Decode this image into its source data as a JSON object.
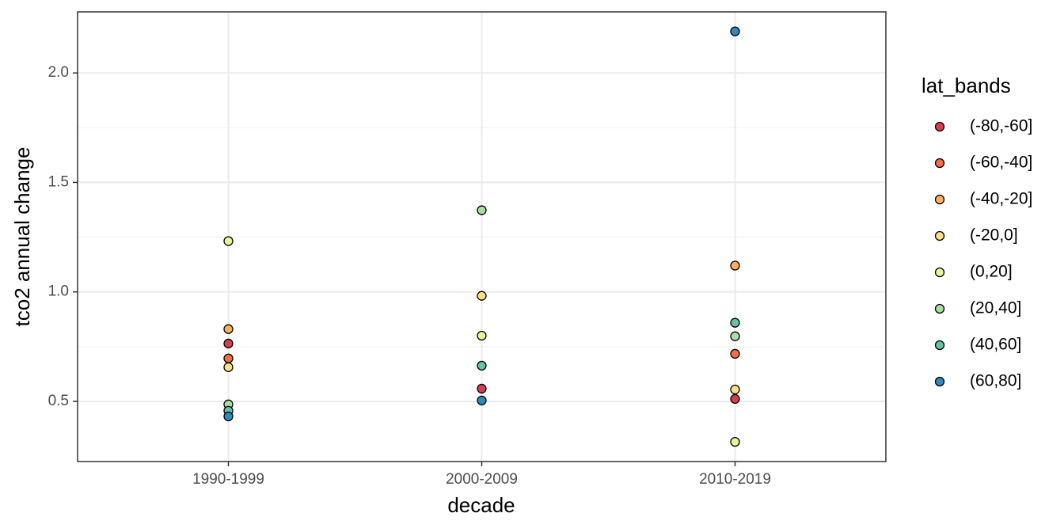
{
  "chart_data": {
    "type": "scatter",
    "x_label": "decade",
    "y_label": "tco2 annual change",
    "categories": [
      "1990-1999",
      "2000-2009",
      "2010-2019"
    ],
    "legend_title": "lat_bands",
    "legend_position": "right",
    "series": [
      {
        "name": "(-80,-60]",
        "color": "#D53E4F",
        "values": [
          0.764,
          0.558,
          0.511
        ]
      },
      {
        "name": "(-60,-40]",
        "color": "#F46D43",
        "values": [
          0.696,
          null,
          0.717
        ]
      },
      {
        "name": "(-40,-20]",
        "color": "#FDAE61",
        "values": [
          0.83,
          null,
          1.12
        ]
      },
      {
        "name": "(-20,0]",
        "color": "#FEE08B",
        "values": [
          0.656,
          0.982,
          0.554
        ]
      },
      {
        "name": "(0,20]",
        "color": "#E6F598",
        "values": [
          1.232,
          0.8,
          0.315
        ]
      },
      {
        "name": "(20,40]",
        "color": "#ABDDA4",
        "values": [
          0.486,
          1.373,
          0.797
        ]
      },
      {
        "name": "(40,60]",
        "color": "#66C2A5",
        "values": [
          0.457,
          0.663,
          0.859
        ]
      },
      {
        "name": "(60,80]",
        "color": "#3288BD",
        "values": [
          0.431,
          0.504,
          2.19
        ]
      }
    ],
    "ylim": [
      0.225,
      2.279
    ],
    "yticks": [
      0.5,
      {
        "value": 1,
        "label": "1.0"
      },
      1.5,
      {
        "value": 2,
        "label": "2.0"
      }
    ],
    "y_minor_gridlines": [
      0.75,
      1.25,
      1.75
    ],
    "grid": true
  }
}
